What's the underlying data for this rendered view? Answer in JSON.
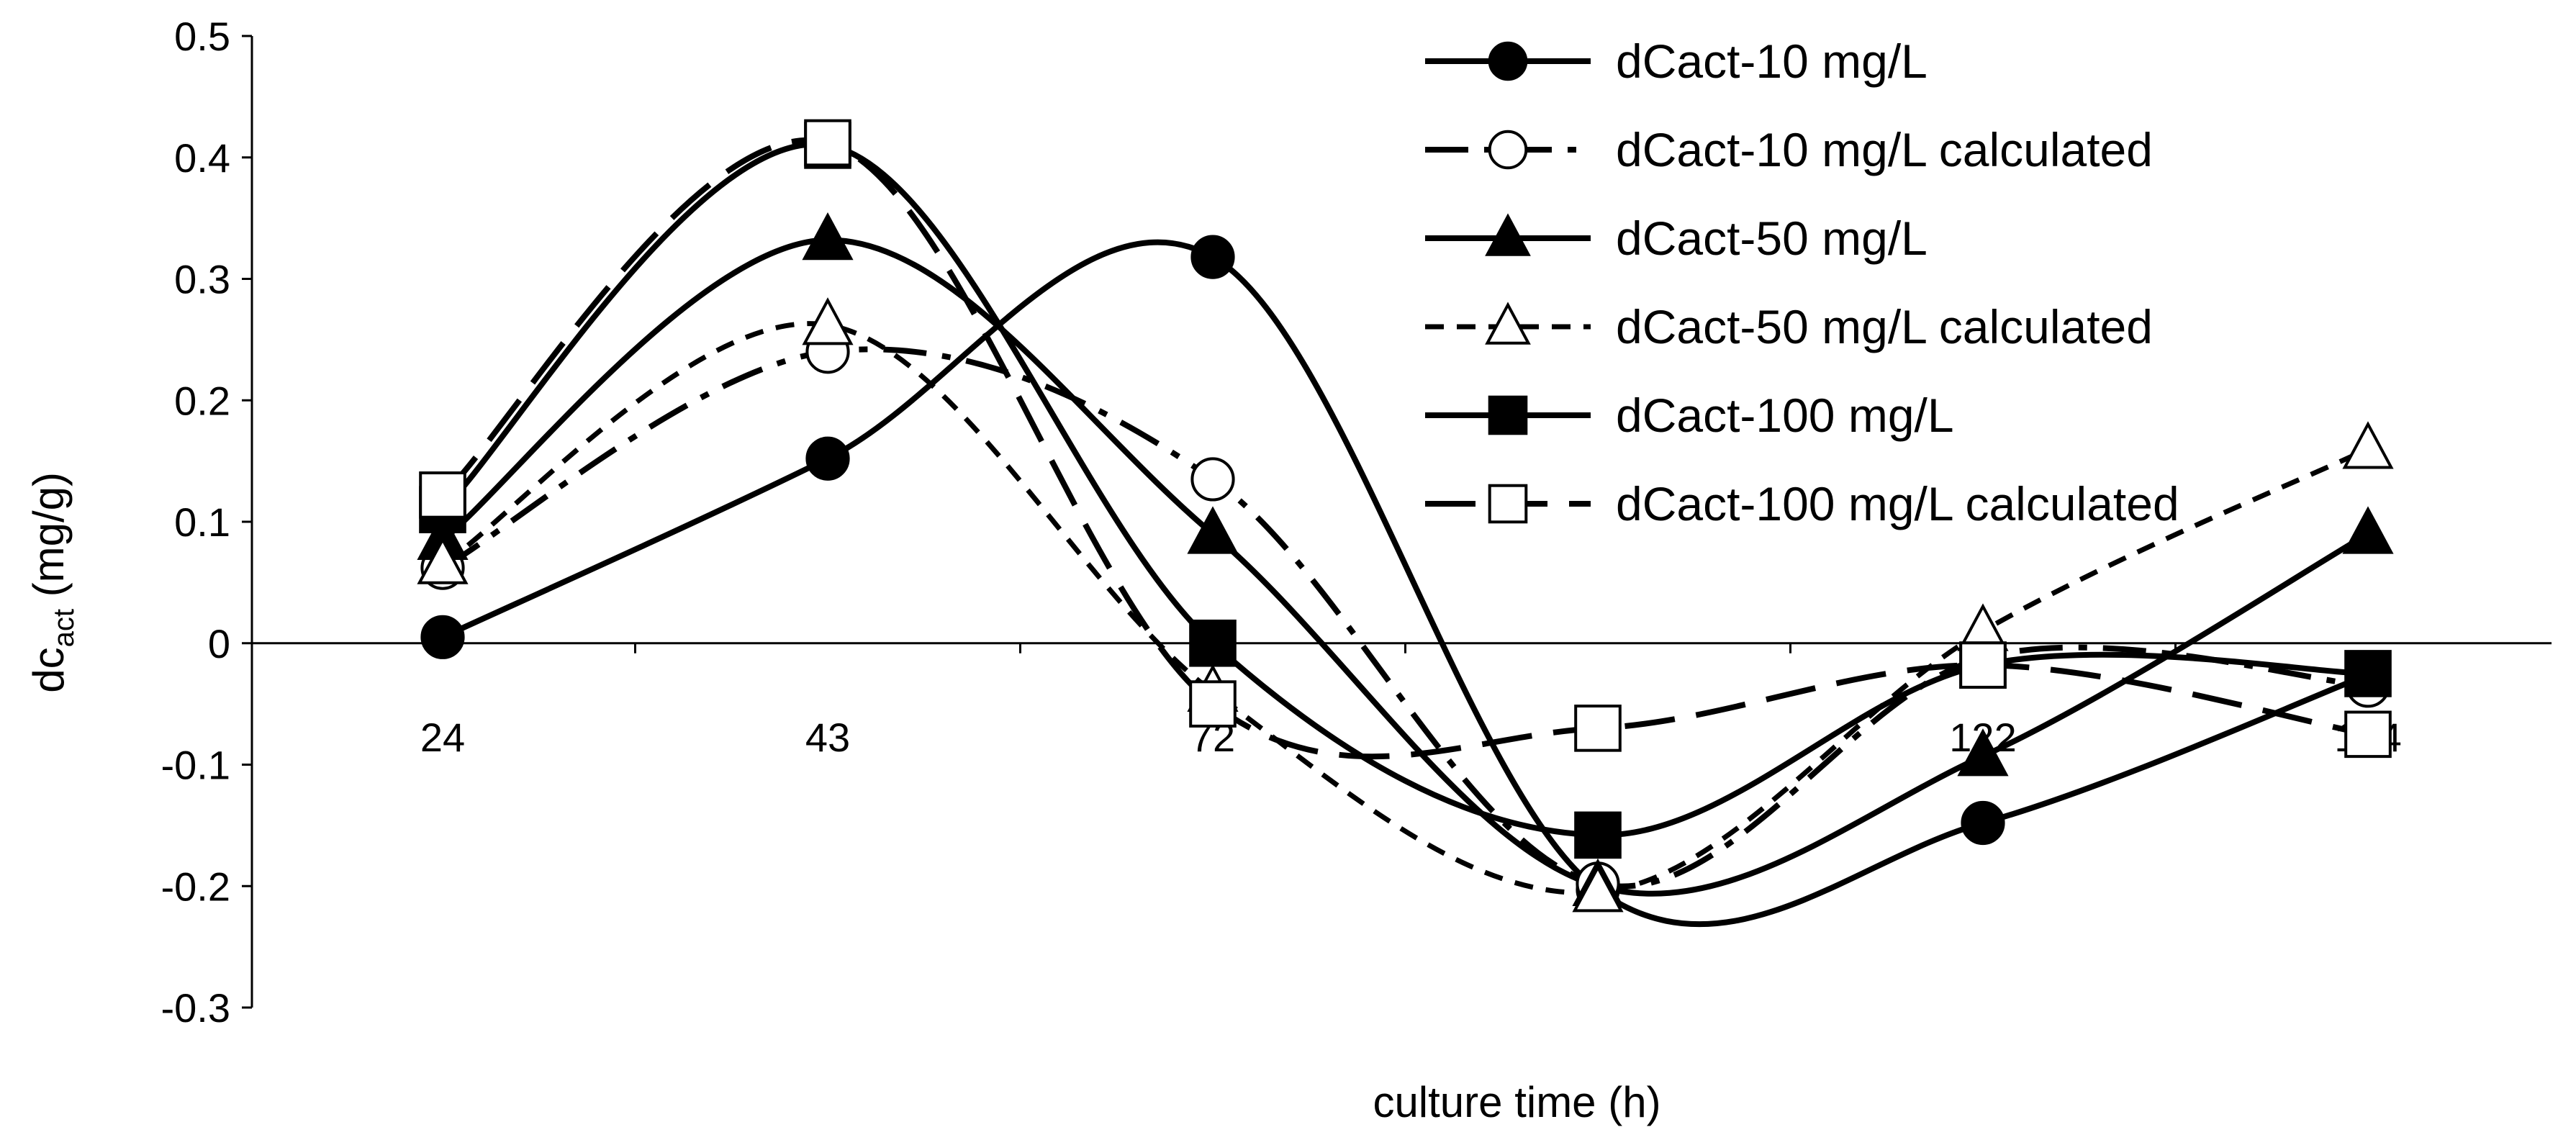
{
  "chart_data": {
    "type": "line",
    "title": "",
    "xlabel": "culture time (h)",
    "ylabel_main": "dc",
    "ylabel_sub": "act",
    "ylabel_unit": " (mg/g)",
    "ylim": [
      -0.3,
      0.5
    ],
    "yticks": [
      "0.5",
      "0.4",
      "0.3",
      "0.2",
      "0.1",
      "0",
      "-0.1",
      "-0.2",
      "-0.3"
    ],
    "categories": [
      "24",
      "43",
      "72",
      "96",
      "122",
      "144"
    ],
    "x": [
      24,
      43,
      72,
      96,
      122,
      144
    ],
    "grid": false,
    "legend_position": "top-right",
    "series": [
      {
        "name": "dCact-10 mg/L",
        "marker": "circle-filled",
        "dash": "solid",
        "values": [
          0.005,
          0.152,
          0.318,
          -0.203,
          -0.148,
          -0.026
        ]
      },
      {
        "name": "dCact-10 mg/L calculated",
        "marker": "circle-open",
        "dash": "dashdot",
        "values": [
          0.062,
          0.24,
          0.135,
          -0.198,
          -0.012,
          -0.035
        ]
      },
      {
        "name": "dCact-50 mg/L",
        "marker": "triangle-filled",
        "dash": "solid",
        "values": [
          0.085,
          0.332,
          0.09,
          -0.2,
          -0.093,
          0.09
        ]
      },
      {
        "name": "dCact-50 mg/L calculated",
        "marker": "triangle-open",
        "dash": "short-dash",
        "values": [
          0.065,
          0.262,
          -0.04,
          -0.205,
          0.01,
          0.16
        ]
      },
      {
        "name": "dCact-100 mg/L",
        "marker": "square-filled",
        "dash": "solid",
        "values": [
          0.11,
          0.41,
          0.0,
          -0.158,
          -0.018,
          -0.025
        ]
      },
      {
        "name": "dCact-100 mg/L calculated",
        "marker": "square-open",
        "dash": "long-dash",
        "values": [
          0.122,
          0.412,
          -0.05,
          -0.07,
          -0.018,
          -0.075
        ]
      }
    ],
    "colors": {
      "line": "#000000",
      "background": "#ffffff"
    }
  }
}
